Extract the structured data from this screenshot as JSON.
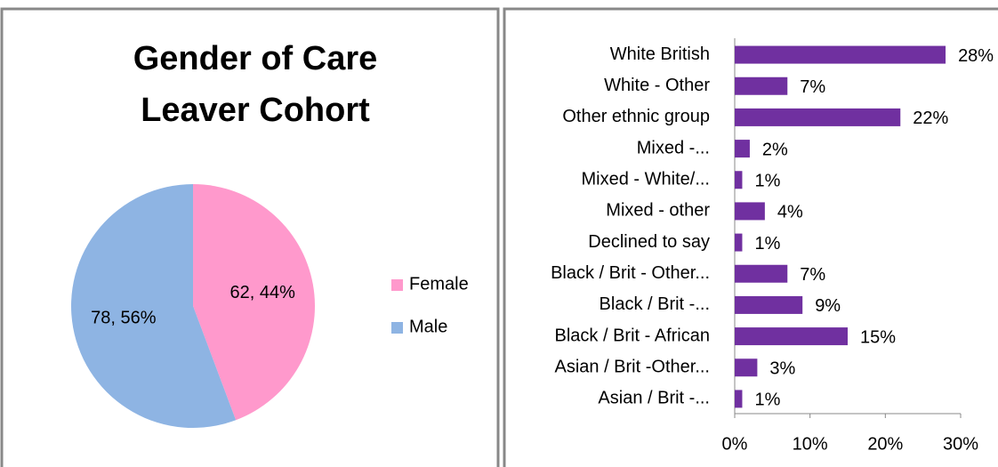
{
  "chart_data": [
    {
      "type": "pie",
      "title": "Gender of Care Leaver Cohort",
      "categories": [
        "Female",
        "Male"
      ],
      "values": [
        62,
        78
      ],
      "value_labels": [
        "62, 44%",
        "78, 56%"
      ],
      "colors": [
        "#ff99cc",
        "#8eb4e3"
      ],
      "legend": "right"
    },
    {
      "type": "bar",
      "orientation": "horizontal",
      "categories": [
        "White British",
        "White - Other",
        "Other ethnic group",
        "Mixed -...",
        "Mixed - White/...",
        "Mixed - other",
        "Declined to say",
        "Black / Brit - Other...",
        "Black / Brit -...",
        "Black / Brit - African",
        "Asian / Brit -Other...",
        "Asian / Brit -..."
      ],
      "values": [
        28,
        7,
        22,
        2,
        1,
        4,
        1,
        7,
        9,
        15,
        3,
        1
      ],
      "value_labels": [
        "28%",
        "7%",
        "22%",
        "2%",
        "1%",
        "4%",
        "1%",
        "7%",
        "9%",
        "15%",
        "3%",
        "1%"
      ],
      "color": "#7030a0",
      "xlim": [
        0,
        30
      ],
      "xticks": [
        {
          "value": 0,
          "label": "0%"
        },
        {
          "value": 10,
          "label": "10%"
        },
        {
          "value": 20,
          "label": "20%"
        },
        {
          "value": 30,
          "label": "30%"
        }
      ],
      "grid": false
    }
  ]
}
